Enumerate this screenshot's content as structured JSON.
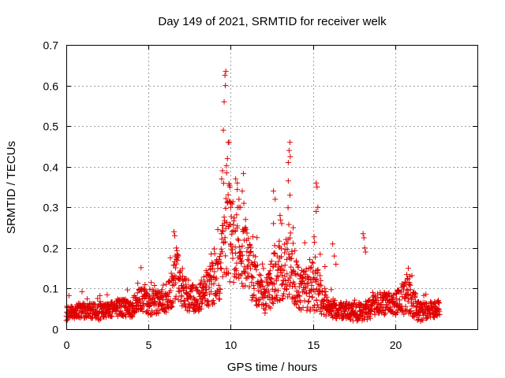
{
  "chart_data": {
    "type": "scatter",
    "title": "Day 149 of 2021, SRMTID for receiver welk",
    "xlabel": "GPS time / hours",
    "ylabel": "SRMTID / TECUs",
    "xlim": [
      0,
      25
    ],
    "ylim": [
      0,
      0.7
    ],
    "x_ticks": [
      0,
      5,
      10,
      15,
      20
    ],
    "x_tick_labels": [
      "0",
      "5",
      "10",
      "15",
      "20"
    ],
    "y_ticks": [
      0,
      0.1,
      0.2,
      0.3,
      0.4,
      0.5,
      0.6,
      0.7
    ],
    "y_tick_labels": [
      "0",
      "0.1",
      "0.2",
      "0.3",
      "0.4",
      "0.5",
      "0.6",
      "0.7"
    ],
    "grid": true,
    "marker": "+",
    "series": [
      {
        "name": "SRMTID",
        "color": "#e00000",
        "envelope": [
          {
            "t": 0.0,
            "base": 0.035,
            "spread": 0.02
          },
          {
            "t": 1.0,
            "base": 0.045,
            "spread": 0.025
          },
          {
            "t": 2.0,
            "base": 0.04,
            "spread": 0.025
          },
          {
            "t": 3.0,
            "base": 0.05,
            "spread": 0.025
          },
          {
            "t": 4.0,
            "base": 0.05,
            "spread": 0.03
          },
          {
            "t": 4.5,
            "base": 0.07,
            "spread": 0.04
          },
          {
            "t": 5.5,
            "base": 0.06,
            "spread": 0.04
          },
          {
            "t": 6.3,
            "base": 0.08,
            "spread": 0.05
          },
          {
            "t": 6.7,
            "base": 0.13,
            "spread": 0.08
          },
          {
            "t": 7.3,
            "base": 0.08,
            "spread": 0.05
          },
          {
            "t": 8.0,
            "base": 0.07,
            "spread": 0.04
          },
          {
            "t": 8.6,
            "base": 0.1,
            "spread": 0.06
          },
          {
            "t": 9.3,
            "base": 0.12,
            "spread": 0.08
          },
          {
            "t": 9.8,
            "base": 0.23,
            "spread": 0.16
          },
          {
            "t": 10.5,
            "base": 0.2,
            "spread": 0.12
          },
          {
            "t": 11.2,
            "base": 0.14,
            "spread": 0.09
          },
          {
            "t": 12.0,
            "base": 0.07,
            "spread": 0.05
          },
          {
            "t": 12.8,
            "base": 0.13,
            "spread": 0.09
          },
          {
            "t": 13.5,
            "base": 0.16,
            "spread": 0.12
          },
          {
            "t": 14.2,
            "base": 0.09,
            "spread": 0.06
          },
          {
            "t": 15.2,
            "base": 0.1,
            "spread": 0.08
          },
          {
            "t": 16.0,
            "base": 0.05,
            "spread": 0.03
          },
          {
            "t": 17.0,
            "base": 0.04,
            "spread": 0.025
          },
          {
            "t": 18.0,
            "base": 0.04,
            "spread": 0.03
          },
          {
            "t": 19.0,
            "base": 0.06,
            "spread": 0.035
          },
          {
            "t": 20.0,
            "base": 0.06,
            "spread": 0.035
          },
          {
            "t": 20.8,
            "base": 0.08,
            "spread": 0.06
          },
          {
            "t": 21.5,
            "base": 0.04,
            "spread": 0.03
          },
          {
            "t": 22.7,
            "base": 0.05,
            "spread": 0.025
          }
        ],
        "peaks": [
          [
            6.55,
            0.24
          ],
          [
            6.6,
            0.23
          ],
          [
            6.7,
            0.2
          ],
          [
            6.8,
            0.18
          ],
          [
            9.55,
            0.49
          ],
          [
            9.6,
            0.56
          ],
          [
            9.65,
            0.625
          ],
          [
            9.68,
            0.6
          ],
          [
            9.7,
            0.635
          ],
          [
            9.45,
            0.37
          ],
          [
            9.5,
            0.39
          ],
          [
            9.75,
            0.385
          ],
          [
            9.8,
            0.42
          ],
          [
            9.85,
            0.46
          ],
          [
            9.9,
            0.46
          ],
          [
            9.95,
            0.35
          ],
          [
            10.0,
            0.3
          ],
          [
            10.3,
            0.37
          ],
          [
            10.4,
            0.36
          ],
          [
            10.5,
            0.32
          ],
          [
            10.6,
            0.3
          ],
          [
            10.7,
            0.34
          ],
          [
            10.8,
            0.31
          ],
          [
            10.9,
            0.27
          ],
          [
            12.6,
            0.34
          ],
          [
            12.7,
            0.32
          ],
          [
            12.6,
            0.26
          ],
          [
            13.0,
            0.28
          ],
          [
            13.1,
            0.26
          ],
          [
            13.5,
            0.41
          ],
          [
            13.55,
            0.44
          ],
          [
            13.6,
            0.46
          ],
          [
            13.62,
            0.425
          ],
          [
            13.5,
            0.365
          ],
          [
            13.6,
            0.33
          ],
          [
            13.8,
            0.25
          ],
          [
            15.2,
            0.36
          ],
          [
            15.25,
            0.35
          ],
          [
            15.3,
            0.3
          ],
          [
            15.2,
            0.29
          ],
          [
            16.2,
            0.21
          ],
          [
            16.3,
            0.18
          ],
          [
            16.4,
            0.16
          ],
          [
            18.05,
            0.235
          ],
          [
            18.1,
            0.225
          ],
          [
            18.15,
            0.2
          ],
          [
            18.2,
            0.19
          ],
          [
            20.8,
            0.15
          ],
          [
            20.9,
            0.13
          ]
        ]
      }
    ]
  }
}
